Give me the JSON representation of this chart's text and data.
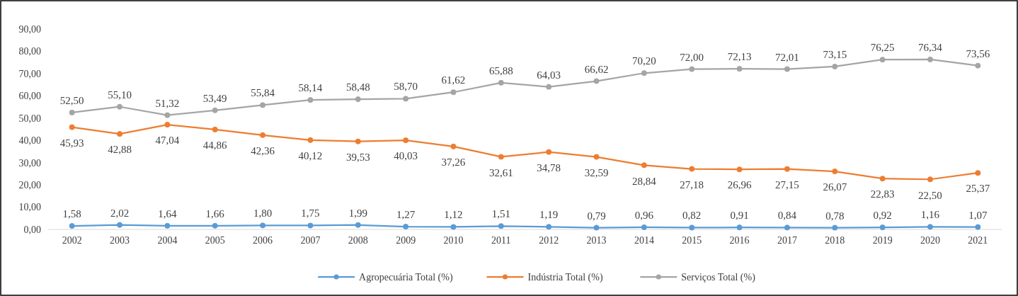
{
  "chart_data": {
    "type": "line",
    "categories": [
      "2002",
      "2003",
      "2004",
      "2005",
      "2006",
      "2007",
      "2008",
      "2009",
      "2010",
      "2011",
      "2012",
      "2013",
      "2014",
      "2015",
      "2016",
      "2017",
      "2018",
      "2019",
      "2020",
      "2021"
    ],
    "series": [
      {
        "name": "Agropecuária Total (%)",
        "color": "#5b9bd5",
        "values": [
          1.58,
          2.02,
          1.64,
          1.66,
          1.8,
          1.75,
          1.99,
          1.27,
          1.12,
          1.51,
          1.19,
          0.79,
          0.96,
          0.82,
          0.91,
          0.84,
          0.78,
          0.92,
          1.16,
          1.07
        ],
        "value_labels": [
          "1,58",
          "2,02",
          "1,64",
          "1,66",
          "1,80",
          "1,75",
          "1,99",
          "1,27",
          "1,12",
          "1,51",
          "1,19",
          "0,79",
          "0,96",
          "0,82",
          "0,91",
          "0,84",
          "0,78",
          "0,92",
          "1,16",
          "1,07"
        ]
      },
      {
        "name": "Indústria Total (%)",
        "color": "#ed7d31",
        "values": [
          45.93,
          42.88,
          47.04,
          44.86,
          42.36,
          40.12,
          39.53,
          40.03,
          37.26,
          32.61,
          34.78,
          32.59,
          28.84,
          27.18,
          26.96,
          27.15,
          26.07,
          22.83,
          22.5,
          25.37
        ],
        "value_labels": [
          "45,93",
          "42,88",
          "47,04",
          "44,86",
          "42,36",
          "40,12",
          "39,53",
          "40,03",
          "37,26",
          "32,61",
          "34,78",
          "32,59",
          "28,84",
          "27,18",
          "26,96",
          "27,15",
          "26,07",
          "22,83",
          "22,50",
          "25,37"
        ]
      },
      {
        "name": "Serviços Total (%)",
        "color": "#a5a5a5",
        "values": [
          52.5,
          55.1,
          51.32,
          53.49,
          55.84,
          58.14,
          58.48,
          58.7,
          61.62,
          65.88,
          64.03,
          66.62,
          70.2,
          72.0,
          72.13,
          72.01,
          73.15,
          76.25,
          76.34,
          73.56
        ],
        "value_labels": [
          "52,50",
          "55,10",
          "51,32",
          "53,49",
          "55,84",
          "58,14",
          "58,48",
          "58,70",
          "61,62",
          "65,88",
          "64,03",
          "66,62",
          "70,20",
          "72,00",
          "72,13",
          "72,01",
          "73,15",
          "76,25",
          "76,34",
          "73,56"
        ]
      }
    ],
    "ylim": [
      0,
      90
    ],
    "yticks": [
      {
        "value": 0,
        "label": "0,00"
      },
      {
        "value": 10,
        "label": "10,00"
      },
      {
        "value": 20,
        "label": "20,00"
      },
      {
        "value": 30,
        "label": "30,00"
      },
      {
        "value": 40,
        "label": "40,00"
      },
      {
        "value": 50,
        "label": "50,00"
      },
      {
        "value": 60,
        "label": "60,00"
      },
      {
        "value": 70,
        "label": "70,00"
      },
      {
        "value": 80,
        "label": "80,00"
      },
      {
        "value": 90,
        "label": "90,00"
      }
    ],
    "grid": false,
    "legend": "bottom",
    "marker": "circle",
    "line_style": "solid"
  }
}
